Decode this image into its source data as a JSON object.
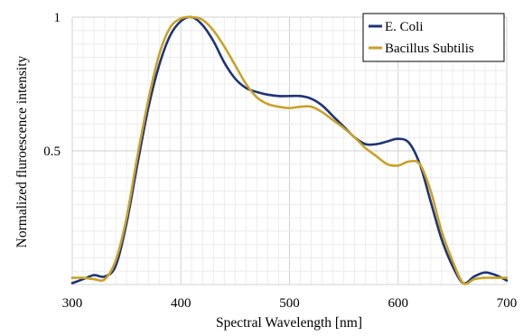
{
  "chart_data": {
    "type": "line",
    "title": "",
    "xlabel": "Spectral Wavelength [nm]",
    "ylabel": "Normalized fluroescence intensity",
    "xlim": [
      300,
      700
    ],
    "ylim": [
      0,
      1
    ],
    "x_ticks": [
      "300",
      "400",
      "500",
      "600",
      "700"
    ],
    "y_ticks": [
      "0.5",
      "1"
    ],
    "grid": "minor and major",
    "legend_position": "top-right",
    "series": [
      {
        "name": "E. Coli",
        "color": "#1f3478",
        "x": [
          300,
          310,
          320,
          330,
          340,
          350,
          360,
          370,
          380,
          390,
          400,
          410,
          420,
          430,
          440,
          450,
          460,
          470,
          480,
          490,
          500,
          510,
          520,
          530,
          540,
          550,
          560,
          570,
          580,
          590,
          600,
          610,
          620,
          630,
          640,
          650,
          660,
          670,
          680,
          690,
          700
        ],
        "y": [
          0.005,
          0.02,
          0.035,
          0.03,
          0.07,
          0.23,
          0.45,
          0.66,
          0.82,
          0.93,
          0.985,
          1.0,
          0.97,
          0.91,
          0.83,
          0.77,
          0.735,
          0.72,
          0.71,
          0.705,
          0.705,
          0.705,
          0.695,
          0.67,
          0.63,
          0.59,
          0.55,
          0.525,
          0.525,
          0.535,
          0.545,
          0.53,
          0.45,
          0.31,
          0.17,
          0.07,
          0.005,
          0.03,
          0.045,
          0.035,
          0.015
        ]
      },
      {
        "name": "Bacillus Subtilis",
        "color": "#c9a227",
        "x": [
          300,
          310,
          320,
          330,
          340,
          350,
          360,
          370,
          380,
          390,
          400,
          410,
          420,
          430,
          440,
          450,
          460,
          470,
          480,
          490,
          500,
          510,
          520,
          530,
          540,
          550,
          560,
          570,
          580,
          590,
          600,
          610,
          620,
          630,
          640,
          650,
          660,
          670,
          680,
          690,
          700
        ],
        "y": [
          0.025,
          0.025,
          0.02,
          0.02,
          0.09,
          0.25,
          0.48,
          0.69,
          0.86,
          0.96,
          0.995,
          1.0,
          0.99,
          0.95,
          0.89,
          0.82,
          0.75,
          0.7,
          0.675,
          0.665,
          0.66,
          0.665,
          0.665,
          0.645,
          0.615,
          0.585,
          0.55,
          0.51,
          0.48,
          0.45,
          0.445,
          0.46,
          0.45,
          0.35,
          0.2,
          0.09,
          0.005,
          0.02,
          0.025,
          0.025,
          0.025
        ]
      }
    ]
  }
}
